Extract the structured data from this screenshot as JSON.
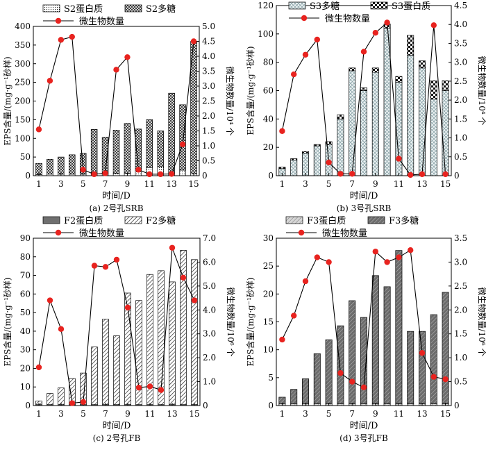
{
  "figure": {
    "title": ""
  },
  "chart_data": [
    {
      "type": "bar",
      "panel": "a",
      "caption": "(a) 2号孔SRB",
      "xlabel": "时间/D",
      "ylabel": "EPS含量/(mg·g⁻¹砂样)",
      "y2label": "微生物数量/10⁴ 个",
      "categories": [
        1,
        2,
        3,
        4,
        5,
        6,
        7,
        8,
        9,
        10,
        11,
        12,
        13,
        14,
        15
      ],
      "xticks": [
        1,
        3,
        5,
        7,
        9,
        11,
        13,
        15
      ],
      "ylim": [
        0,
        400
      ],
      "yticks": [
        0,
        50,
        100,
        150,
        200,
        250,
        300,
        350,
        400
      ],
      "y2lim": [
        0,
        5.0
      ],
      "y2ticks": [
        "0",
        "0.5",
        "1.0",
        "1.5",
        "2.0",
        "2.5",
        "3.0",
        "3.5",
        "4.0",
        "4.5",
        "5.0"
      ],
      "stacked": true,
      "series": [
        {
          "name": "S2蛋白质",
          "style": "dots",
          "values": [
            3,
            4,
            4,
            4,
            4,
            5,
            5,
            6,
            6,
            20,
            22,
            24,
            6,
            15,
            5
          ]
        },
        {
          "name": "S2多糖",
          "style": "cross",
          "values": [
            30,
            40,
            46,
            52,
            56,
            119,
            98,
            116,
            134,
            105,
            128,
            96,
            215,
            175,
            355
          ]
        }
      ],
      "line": {
        "name": "微生物数量",
        "color": "#e8231f",
        "values": [
          1.55,
          3.18,
          4.55,
          4.65,
          0.2,
          0.05,
          0.08,
          3.55,
          3.97,
          0.2,
          0.05,
          0.05,
          0.06,
          1.05,
          4.5
        ]
      }
    },
    {
      "type": "bar",
      "panel": "b",
      "caption": "(b) 3号孔SRB",
      "xlabel": "时间/D",
      "ylabel": "EPS含量/(mg·g⁻¹砂样)",
      "y2label": "微生物数量/10⁴ 个",
      "categories": [
        1,
        2,
        3,
        4,
        5,
        6,
        7,
        8,
        9,
        10,
        11,
        12,
        13,
        14,
        15
      ],
      "xticks": [
        1,
        3,
        5,
        7,
        9,
        11,
        13,
        15
      ],
      "ylim": [
        0,
        120
      ],
      "yticks": [
        0,
        20,
        40,
        60,
        80,
        100,
        120
      ],
      "y2lim": [
        0,
        4.5
      ],
      "y2ticks": [
        "0",
        "0.5",
        "1.0",
        "1.5",
        "2.0",
        "2.5",
        "3.0",
        "3.5",
        "4.0",
        "4.5"
      ],
      "stacked": true,
      "series": [
        {
          "name": "S3多糖",
          "style": "diamond",
          "values": [
            5,
            11,
            16,
            21,
            22,
            40,
            74,
            60,
            73,
            104,
            66,
            85,
            76,
            54,
            60
          ]
        },
        {
          "name": "S3蛋白质",
          "style": "checker",
          "values": [
            1,
            1,
            1,
            1,
            2,
            3,
            2,
            2,
            3,
            3,
            4,
            14,
            5,
            13,
            7
          ]
        }
      ],
      "line": {
        "name": "微生物数量",
        "color": "#e8231f",
        "values": [
          1.18,
          2.68,
          3.2,
          3.6,
          0.35,
          0.05,
          0.05,
          3.28,
          3.78,
          4.05,
          0.45,
          0.02,
          0.04,
          3.98,
          0.04
        ]
      }
    },
    {
      "type": "bar",
      "panel": "c",
      "caption": "(c) 2号孔FB",
      "xlabel": "时间/D",
      "ylabel": "EPS含量/(mg·g⁻¹砂样)",
      "y2label": "微生物数量/10⁶ 个",
      "categories": [
        1,
        2,
        3,
        4,
        5,
        6,
        7,
        8,
        9,
        10,
        11,
        12,
        13,
        14,
        15
      ],
      "xticks": [
        1,
        3,
        5,
        7,
        9,
        11,
        13,
        15
      ],
      "ylim": [
        0,
        90
      ],
      "yticks": [
        0,
        10,
        20,
        30,
        40,
        50,
        60,
        70,
        80,
        90
      ],
      "y2lim": [
        0,
        7.0
      ],
      "y2ticks": [
        "0",
        "1.0",
        "2.0",
        "3.0",
        "4.0",
        "5.0",
        "6.0",
        "7.0"
      ],
      "stacked": true,
      "series": [
        {
          "name": "F2蛋白质",
          "style": "solidgray",
          "values": [
            0.5,
            0.5,
            0.5,
            0.5,
            0.5,
            0.5,
            0.5,
            0.5,
            0.5,
            0.5,
            0.5,
            0.5,
            0.5,
            0.5,
            0.5
          ]
        },
        {
          "name": "F2多糖",
          "style": "hatch",
          "values": [
            2,
            6,
            9,
            14,
            17,
            31,
            46,
            37,
            60,
            56,
            70,
            72,
            66,
            83,
            78
          ]
        }
      ],
      "line": {
        "name": "微生物数量",
        "color": "#e8231f",
        "values": [
          1.6,
          4.4,
          3.2,
          0.1,
          0.15,
          5.85,
          5.8,
          6.1,
          4.1,
          0.75,
          0.8,
          0.65,
          6.6,
          5.35,
          4.4
        ]
      }
    },
    {
      "type": "bar",
      "panel": "d",
      "caption": "(d) 3号孔FB",
      "xlabel": "时间/D",
      "ylabel": "EPS含量/(mg·g⁻¹砂样)",
      "y2label": "微生物数量/10⁶ 个",
      "categories": [
        1,
        2,
        3,
        4,
        5,
        6,
        7,
        8,
        9,
        10,
        11,
        12,
        13,
        14,
        15
      ],
      "xticks": [
        1,
        3,
        5,
        7,
        9,
        11,
        13,
        15
      ],
      "ylim": [
        0,
        30
      ],
      "yticks": [
        0,
        5,
        10,
        15,
        20,
        25,
        30
      ],
      "y2lim": [
        0,
        3.5
      ],
      "y2ticks": [
        "0",
        "0.5",
        "1.0",
        "1.5",
        "2.0",
        "2.5",
        "3.0",
        "3.5"
      ],
      "stacked": true,
      "series": [
        {
          "name": "F3蛋白质",
          "style": "lighthatch",
          "values": [
            0.3,
            0.3,
            0.3,
            0.3,
            0.3,
            0.3,
            0.3,
            0.3,
            0.3,
            0.3,
            0.3,
            0.3,
            0.3,
            0.3,
            0.3
          ]
        },
        {
          "name": "F3多糖",
          "style": "darkhatch",
          "values": [
            1.2,
            2.6,
            4.5,
            9,
            11.5,
            14,
            18.5,
            15.5,
            23,
            21,
            27.5,
            13,
            13,
            16,
            20
          ]
        }
      ],
      "line": {
        "name": "微生物数量",
        "color": "#e8231f",
        "values": [
          1.38,
          1.88,
          2.6,
          3.1,
          3.0,
          0.68,
          0.5,
          0.38,
          3.22,
          3.0,
          3.1,
          3.25,
          1.1,
          0.6,
          0.55
        ]
      }
    }
  ]
}
